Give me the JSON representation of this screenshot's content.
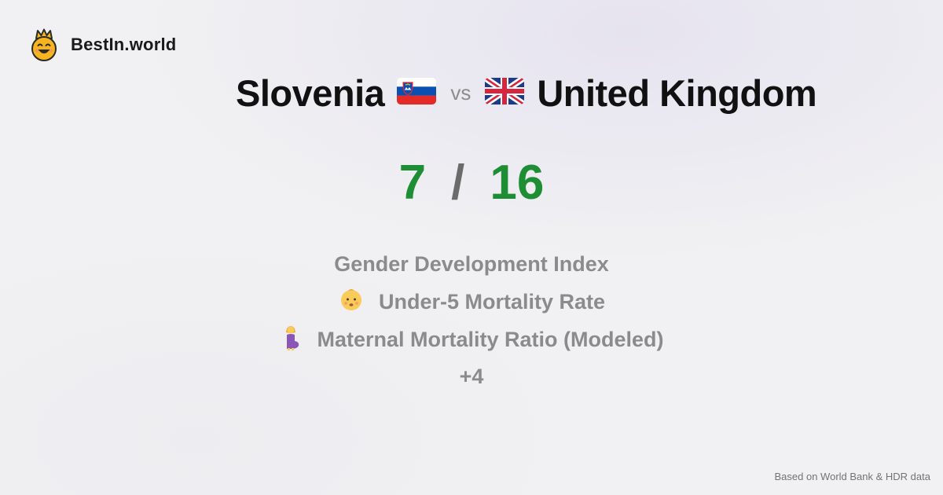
{
  "brand": {
    "name": "BestIn.world",
    "logo_icon": "crowned-smiley-logo"
  },
  "title": {
    "left_country": "Slovenia",
    "left_flag": "slovenia-flag-icon",
    "vs_label": "vs",
    "right_country": "United Kingdom",
    "right_flag": "uk-flag-icon"
  },
  "score": {
    "left": "7",
    "separator": "/",
    "right": "16",
    "color": "#1e8e34"
  },
  "metrics": [
    {
      "label": "Gender Development Index",
      "icon": ""
    },
    {
      "label": "Under-5 Mortality Rate",
      "icon": "baby-icon"
    },
    {
      "label": "Maternal Mortality Ratio (Modeled)",
      "icon": "pregnant-woman-icon"
    }
  ],
  "more_label": "+4",
  "footer": {
    "source": "Based on World Bank & HDR data"
  }
}
